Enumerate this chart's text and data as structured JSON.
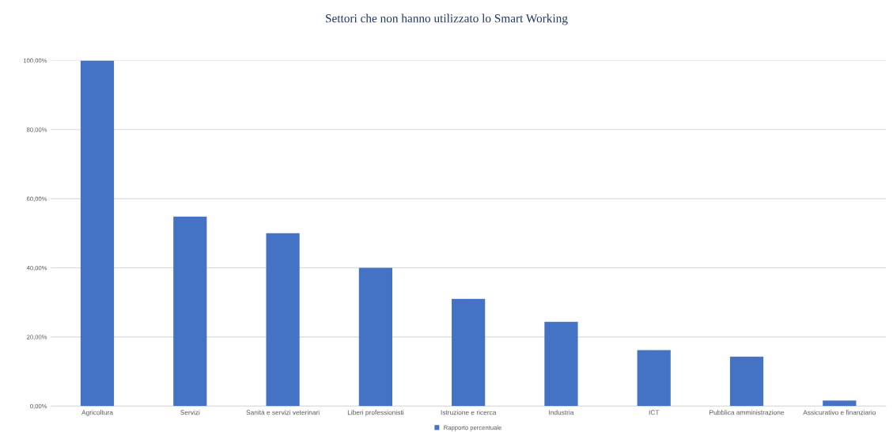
{
  "chart_data": {
    "type": "bar",
    "title": "Settori che non hanno utilizzato lo Smart Working",
    "categories": [
      "Agricoltura",
      "Servizi",
      "Sanità e servizi veterinari",
      "Liberi professionisti",
      "Istruzione e ricerca",
      "Industria",
      "ICT",
      "Pubblica amministrazione",
      "Assicurativo e finanziario"
    ],
    "series": [
      {
        "name": "Rapporto percentuale",
        "color": "#4472c4",
        "values": [
          100,
          54.8,
          50,
          40,
          31,
          24.4,
          16.2,
          14.3,
          1.6
        ]
      }
    ],
    "ylim": [
      0,
      100
    ],
    "yticks": [
      {
        "value": 0,
        "label": "0,00%"
      },
      {
        "value": 20,
        "label": "20,00%"
      },
      {
        "value": 40,
        "label": "40,00%"
      },
      {
        "value": 60,
        "label": "60,00%"
      },
      {
        "value": 80,
        "label": "80,00%"
      },
      {
        "value": 100,
        "label": "100,00%"
      }
    ],
    "grid": "y",
    "legend": "bottom"
  }
}
